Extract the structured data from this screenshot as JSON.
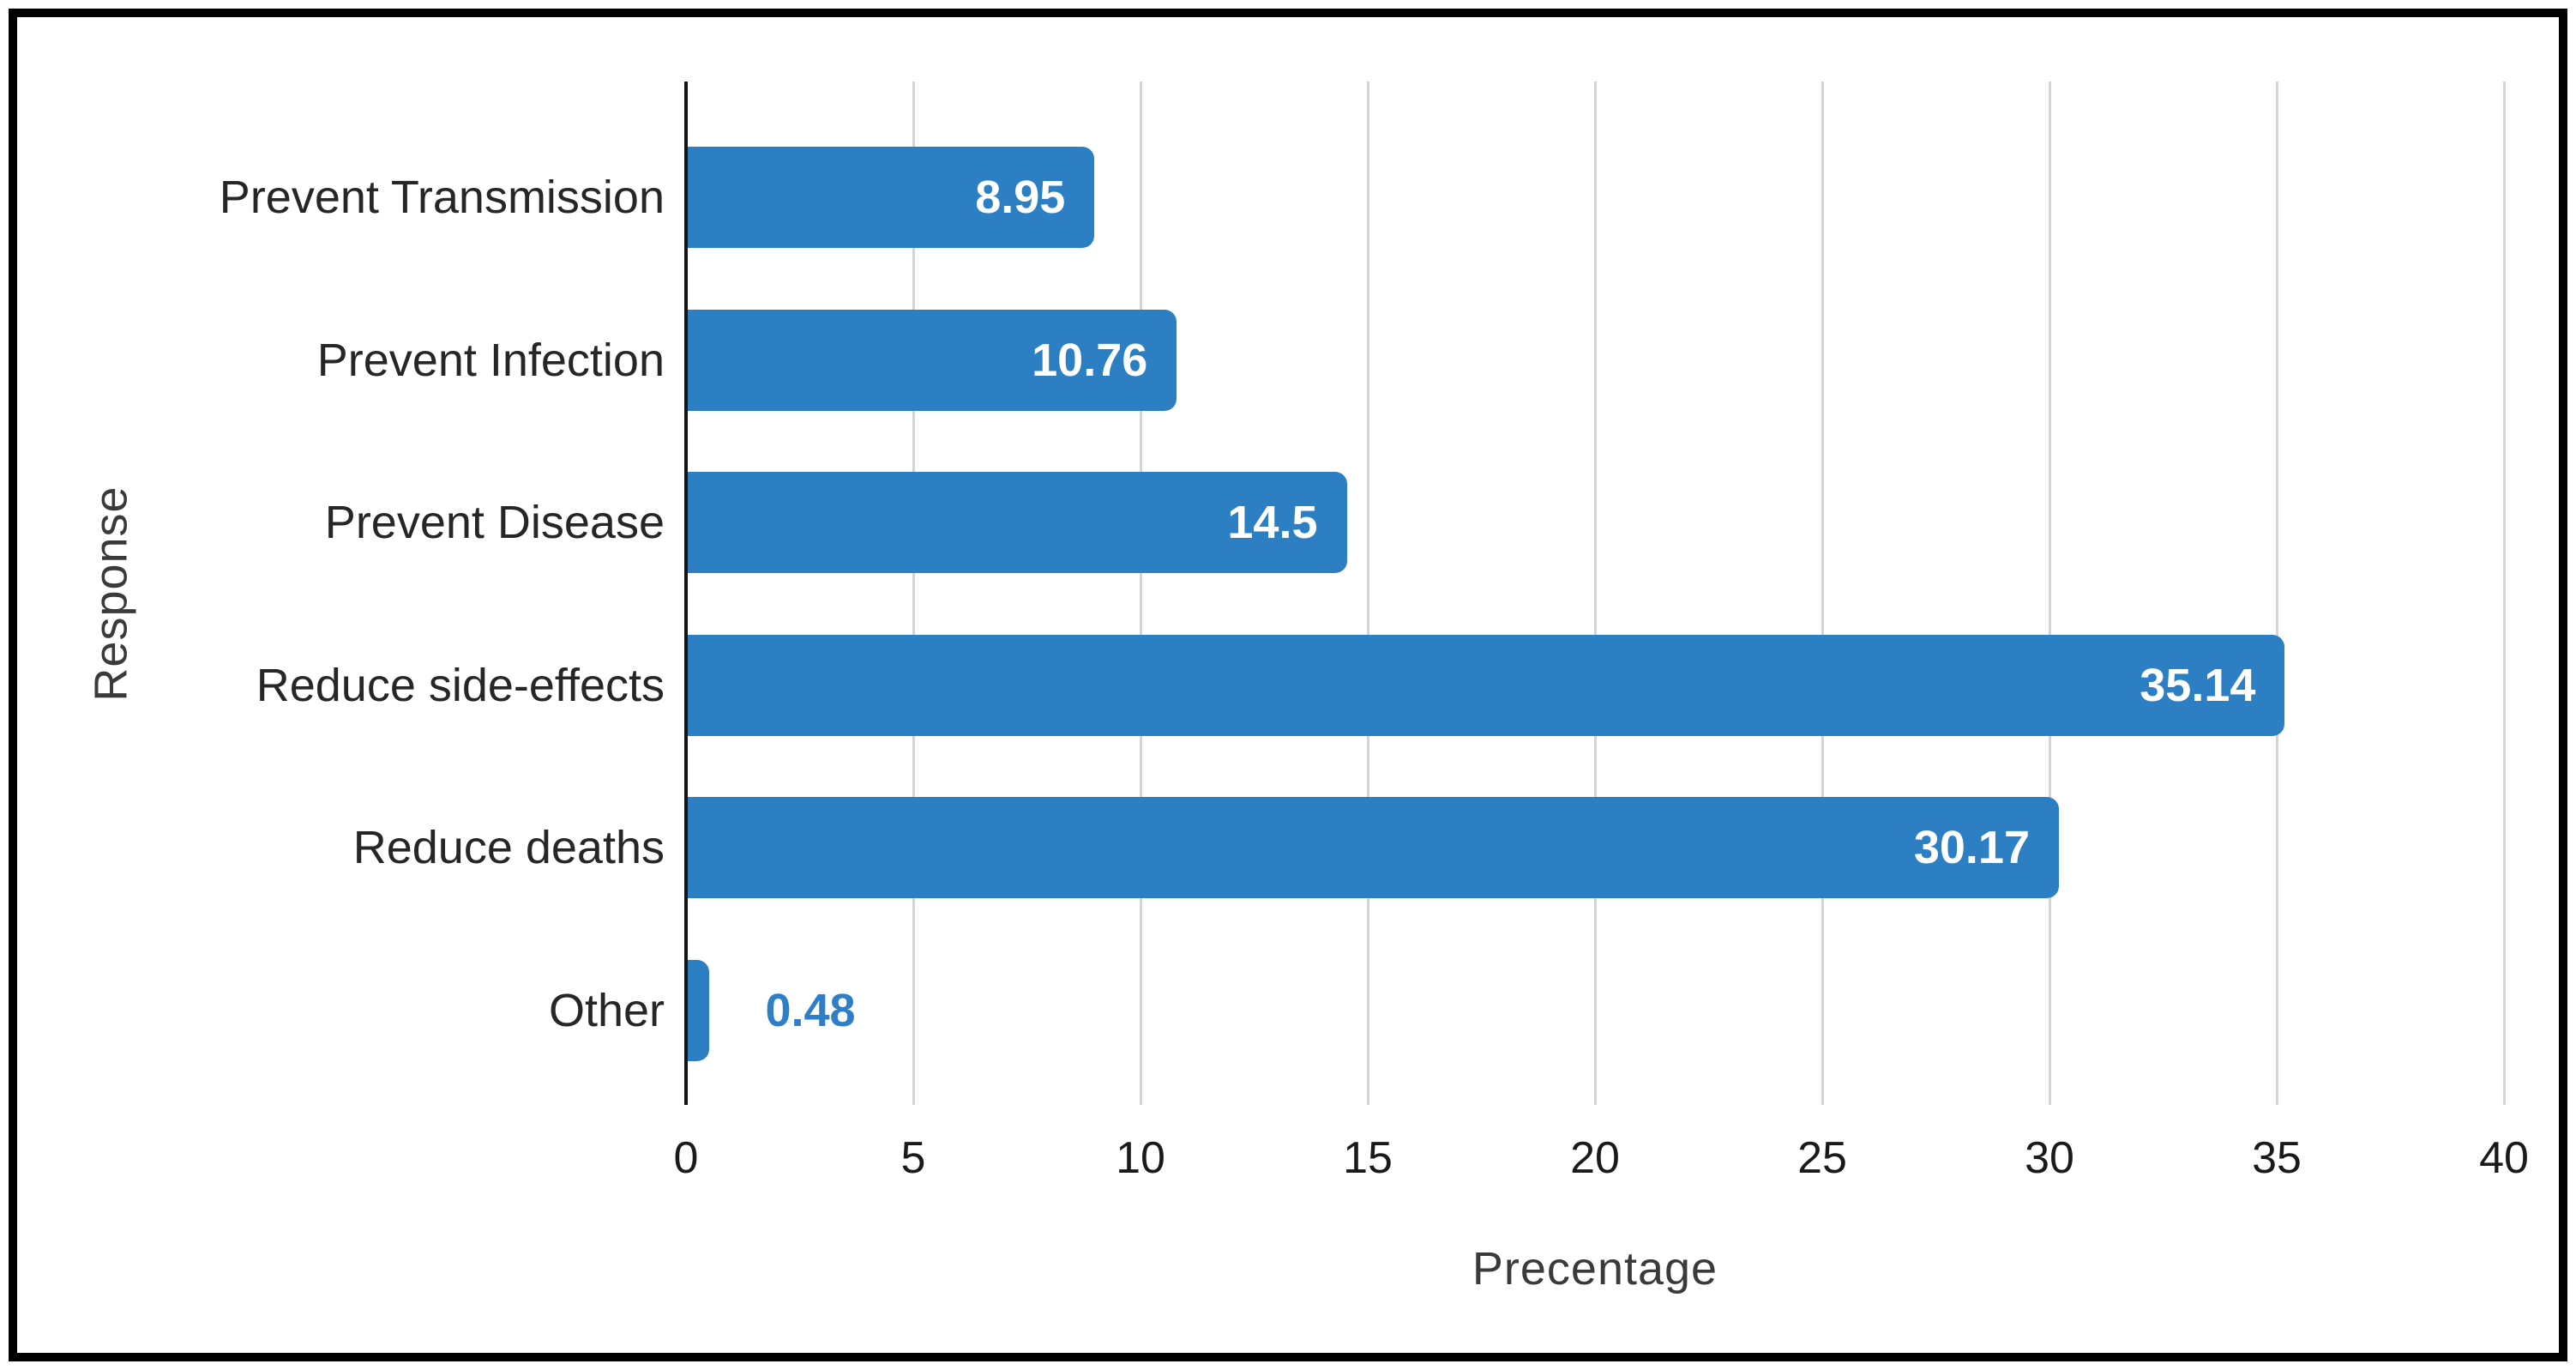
{
  "figure": {
    "frame_color": "#000000",
    "background_color": "#FFFFFF"
  },
  "chart_data": {
    "type": "bar",
    "orientation": "horizontal",
    "title": "",
    "categories": [
      "Prevent Transmission",
      "Prevent Infection",
      "Prevent Disease",
      "Reduce side-effects",
      "Reduce deaths",
      "Other"
    ],
    "values": [
      8.95,
      10.76,
      14.5,
      35.14,
      30.17,
      0.48
    ],
    "value_labels": [
      "8.95",
      "10.76",
      "14.5",
      "35.14",
      "30.17",
      "0.48"
    ],
    "xlabel": "Precentage",
    "ylabel": "Response",
    "xlim": [
      0,
      40
    ],
    "xticks": [
      0,
      5,
      10,
      15,
      20,
      25,
      30,
      35,
      40
    ],
    "grid": "vertical",
    "legend": "none",
    "bar_color": "#2B7FC2",
    "value_label_inside_color": "#FFFFFF",
    "value_label_outside_color": "#2E7FC8",
    "gridline_color": "#D4D4D4",
    "axis_line_color": "#141414"
  }
}
